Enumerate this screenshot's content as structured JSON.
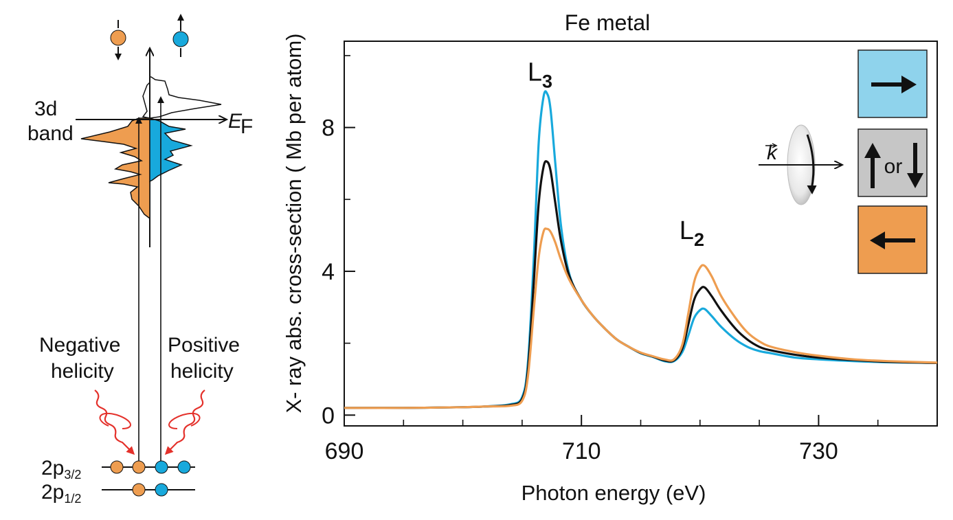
{
  "colors": {
    "orange": "#EE9D50",
    "blue": "#18A9DC",
    "black": "#111111",
    "red": "#E4312B",
    "light_blue_box": "#8FD3EC",
    "grey_box": "#C6C6C6",
    "orange_box": "#EE9D50"
  },
  "diagram": {
    "band_label_line1": "3d",
    "band_label_line2": "band",
    "fermi_label": "E",
    "fermi_sub": "F",
    "negative_helicity_line1": "Negative",
    "negative_helicity_line2": "helicity",
    "positive_helicity_line1": "Positive",
    "positive_helicity_line2": "helicity",
    "level_p32": "2p",
    "level_p32_sub": "3/2",
    "level_p12": "2p",
    "level_p12_sub": "1/2",
    "spin_down_icon": "spin-down-electron",
    "spin_up_icon": "spin-up-electron"
  },
  "inset": {
    "k_label": "k",
    "or_label": "or",
    "box_positive_icon": "right-arrow",
    "box_linear_icon": "up-or-down-arrows",
    "box_negative_icon": "left-arrow"
  },
  "chart_data": {
    "type": "line",
    "title": "Fe metal",
    "xlabel": "Photon energy (eV)",
    "ylabel": "X- ray  abs.  cross-section ( Mb  per atom)",
    "xlim": [
      690,
      740
    ],
    "ylim": [
      -0.3,
      10.4
    ],
    "x_ticks": [
      690,
      710,
      730
    ],
    "y_ticks": [
      0,
      4,
      8
    ],
    "x_minor_ticks": [
      695,
      700,
      705,
      715,
      720,
      725,
      735
    ],
    "y_minor_ticks": [
      2,
      6,
      10
    ],
    "grid": false,
    "annotations": [
      {
        "text": "L",
        "sub": "3",
        "x": 707.2,
        "y": 9.3
      },
      {
        "text": "L",
        "sub": "2",
        "x": 720.0,
        "y": 4.9
      }
    ],
    "x": [
      690,
      695,
      700,
      702,
      704,
      705,
      705.5,
      706,
      706.4,
      706.8,
      707.1,
      707.4,
      707.8,
      708.3,
      709,
      710,
      711,
      712,
      713,
      714,
      715,
      716,
      717,
      717.8,
      718.5,
      719,
      719.5,
      720,
      720.4,
      721,
      721.8,
      723,
      724,
      725,
      726,
      728,
      730,
      733,
      736,
      740
    ],
    "series": [
      {
        "color": "#18A9DC",
        "values": [
          0.2,
          0.2,
          0.22,
          0.24,
          0.3,
          0.5,
          1.5,
          4.5,
          7.6,
          8.85,
          8.95,
          8.5,
          7.0,
          5.2,
          3.9,
          3.2,
          2.75,
          2.4,
          2.1,
          1.9,
          1.72,
          1.62,
          1.5,
          1.5,
          1.75,
          2.2,
          2.7,
          2.92,
          2.95,
          2.75,
          2.45,
          2.1,
          1.9,
          1.78,
          1.72,
          1.6,
          1.55,
          1.5,
          1.47,
          1.45
        ]
      },
      {
        "color": "#111111",
        "values": [
          0.2,
          0.2,
          0.22,
          0.24,
          0.28,
          0.45,
          1.3,
          3.8,
          5.9,
          6.9,
          7.05,
          6.8,
          5.9,
          4.8,
          3.85,
          3.2,
          2.75,
          2.4,
          2.1,
          1.9,
          1.73,
          1.63,
          1.52,
          1.52,
          1.85,
          2.5,
          3.2,
          3.5,
          3.55,
          3.3,
          2.9,
          2.4,
          2.1,
          1.9,
          1.8,
          1.68,
          1.6,
          1.53,
          1.48,
          1.45
        ]
      },
      {
        "color": "#EE9D50",
        "values": [
          0.2,
          0.2,
          0.22,
          0.24,
          0.26,
          0.4,
          1.1,
          3.0,
          4.4,
          5.1,
          5.18,
          5.1,
          4.8,
          4.3,
          3.75,
          3.2,
          2.75,
          2.4,
          2.1,
          1.9,
          1.74,
          1.64,
          1.55,
          1.55,
          1.95,
          2.8,
          3.7,
          4.1,
          4.15,
          3.85,
          3.3,
          2.7,
          2.3,
          2.05,
          1.9,
          1.75,
          1.65,
          1.55,
          1.5,
          1.46
        ]
      }
    ]
  }
}
